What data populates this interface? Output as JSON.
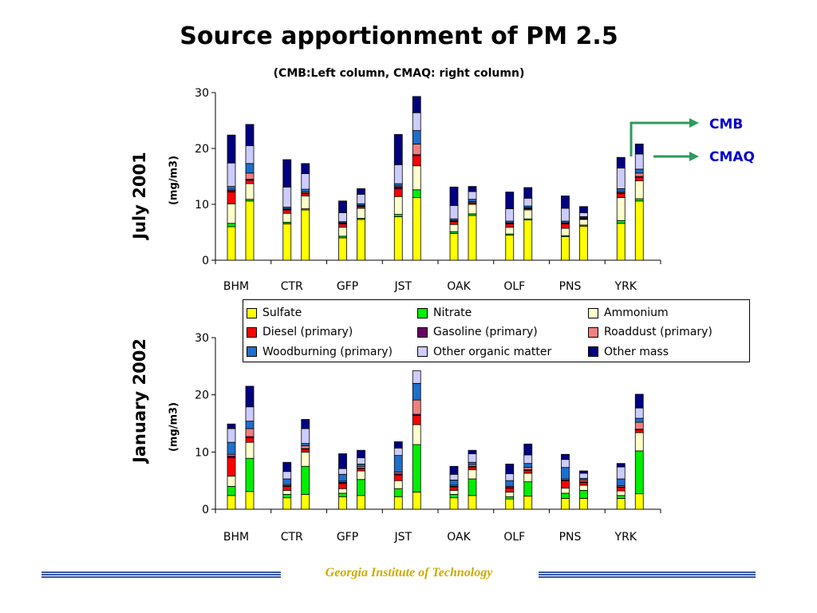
{
  "title": "Source apportionment of PM 2.5",
  "subtitle": "(CMB:Left column, CMAQ: right column)",
  "annotations": {
    "cmb": "CMB",
    "cmaq": "CMAQ"
  },
  "footer": "Georgia Institute of Technology",
  "colors": {
    "arrow": "#2e9a5c",
    "annotation_text": "#0000cc",
    "footer_text": "#ccaa00",
    "footer_lines": "#3355aa"
  },
  "chart_data": [
    {
      "type": "bar",
      "stacked": true,
      "period_label": "July 2001",
      "ylabel": "(mg/m3)",
      "ylim": [
        0,
        30
      ],
      "yticks": [
        0,
        10,
        20,
        30
      ],
      "categories": [
        "BHM",
        "CTR",
        "GFP",
        "JST",
        "OAK",
        "OLF",
        "PNS",
        "YRK"
      ],
      "columns_per_category": [
        "CMB",
        "CMAQ"
      ],
      "series": [
        {
          "name": "Sulfate",
          "color": "#ffff00",
          "cmb": [
            6.0,
            6.5,
            4.0,
            7.8,
            4.8,
            4.5,
            4.2,
            6.6
          ],
          "cmaq": [
            10.6,
            9.0,
            7.3,
            11.2,
            8.0,
            7.2,
            6.1,
            10.6
          ]
        },
        {
          "name": "Nitrate",
          "color": "#00ee00",
          "cmb": [
            0.6,
            0.3,
            0.3,
            0.4,
            0.3,
            0.2,
            0.2,
            0.5
          ],
          "cmaq": [
            0.3,
            0.2,
            0.2,
            1.4,
            0.3,
            0.2,
            0.2,
            0.4
          ]
        },
        {
          "name": "Ammonium",
          "color": "#ffffcc",
          "cmb": [
            3.5,
            1.6,
            1.6,
            3.2,
            1.3,
            1.2,
            1.3,
            4.1
          ],
          "cmaq": [
            2.8,
            2.3,
            1.8,
            4.3,
            1.7,
            1.6,
            1.0,
            3.2
          ]
        },
        {
          "name": "Diesel (primary)",
          "color": "#ff0000",
          "cmb": [
            2.1,
            0.6,
            0.6,
            1.4,
            0.5,
            0.6,
            0.8,
            0.7
          ],
          "cmaq": [
            0.6,
            0.4,
            0.3,
            1.8,
            0.2,
            0.2,
            0.1,
            0.6
          ]
        },
        {
          "name": "Gasoline (primary)",
          "color": "#660066",
          "cmb": [
            0.3,
            0.1,
            0.1,
            0.3,
            0.1,
            0.1,
            0.1,
            0.2
          ],
          "cmaq": [
            0.2,
            0.1,
            0.1,
            0.2,
            0.1,
            0.1,
            0.1,
            0.2
          ]
        },
        {
          "name": "Roaddust (primary)",
          "color": "#f08080",
          "cmb": [
            0.2,
            0.1,
            0.1,
            0.2,
            0.1,
            0.1,
            0.1,
            0.2
          ],
          "cmaq": [
            1.1,
            0.2,
            0.1,
            1.9,
            0.2,
            0.1,
            0.1,
            0.6
          ]
        },
        {
          "name": "Woodburning (primary)",
          "color": "#1e6fcc",
          "cmb": [
            0.5,
            0.3,
            0.2,
            0.4,
            0.3,
            0.3,
            0.3,
            0.5
          ],
          "cmaq": [
            1.7,
            0.5,
            0.3,
            2.4,
            0.4,
            0.3,
            0.2,
            0.7
          ]
        },
        {
          "name": "Other organic matter",
          "color": "#ccccff",
          "cmb": [
            4.2,
            3.6,
            1.6,
            3.4,
            2.4,
            2.2,
            2.3,
            3.7
          ],
          "cmaq": [
            3.2,
            2.8,
            1.7,
            3.2,
            1.4,
            1.4,
            0.7,
            2.7
          ]
        },
        {
          "name": "Other mass",
          "color": "#000080",
          "cmb": [
            5.0,
            4.9,
            2.1,
            5.4,
            3.3,
            3.0,
            2.2,
            1.9
          ],
          "cmaq": [
            3.8,
            1.8,
            1.0,
            2.9,
            0.9,
            1.9,
            1.1,
            1.8
          ]
        }
      ]
    },
    {
      "type": "bar",
      "stacked": true,
      "period_label": "January 2002",
      "ylabel": "(mg/m3)",
      "ylim": [
        0,
        30
      ],
      "yticks": [
        0,
        10,
        20,
        30
      ],
      "categories": [
        "BHM",
        "CTR",
        "GFP",
        "JST",
        "OAK",
        "OLF",
        "PNS",
        "YRK"
      ],
      "columns_per_category": [
        "CMB",
        "CMAQ"
      ],
      "series": [
        {
          "name": "Sulfate",
          "color": "#ffff00",
          "cmb": [
            2.4,
            2.0,
            2.2,
            2.2,
            2.0,
            1.8,
            1.9,
            1.9
          ],
          "cmaq": [
            3.1,
            2.6,
            2.4,
            3.0,
            2.4,
            2.3,
            1.9,
            2.7
          ]
        },
        {
          "name": "Nitrate",
          "color": "#00ee00",
          "cmb": [
            1.6,
            0.6,
            0.6,
            1.4,
            0.6,
            0.4,
            0.9,
            0.5
          ],
          "cmaq": [
            5.8,
            4.9,
            2.8,
            8.3,
            2.9,
            2.5,
            1.4,
            7.5
          ]
        },
        {
          "name": "Ammonium",
          "color": "#ffffcc",
          "cmb": [
            1.8,
            0.7,
            0.8,
            1.4,
            0.7,
            0.8,
            0.9,
            0.8
          ],
          "cmaq": [
            2.8,
            2.5,
            1.5,
            3.5,
            1.6,
            1.5,
            0.9,
            3.2
          ]
        },
        {
          "name": "Diesel (primary)",
          "color": "#ff0000",
          "cmb": [
            3.2,
            0.7,
            0.9,
            1.0,
            0.6,
            0.7,
            1.3,
            0.6
          ],
          "cmaq": [
            0.8,
            0.5,
            0.4,
            1.6,
            0.5,
            0.5,
            0.5,
            0.5
          ]
        },
        {
          "name": "Gasoline (primary)",
          "color": "#660066",
          "cmb": [
            0.3,
            0.1,
            0.2,
            0.2,
            0.1,
            0.1,
            0.1,
            0.1
          ],
          "cmaq": [
            0.2,
            0.1,
            0.1,
            0.2,
            0.1,
            0.1,
            0.1,
            0.1
          ]
        },
        {
          "name": "Roaddust (primary)",
          "color": "#f08080",
          "cmb": [
            0.3,
            0.2,
            0.2,
            0.3,
            0.2,
            0.2,
            0.2,
            0.2
          ],
          "cmaq": [
            1.4,
            0.5,
            0.3,
            2.5,
            0.3,
            0.4,
            0.3,
            1.2
          ]
        },
        {
          "name": "Woodburning (primary)",
          "color": "#1e6fcc",
          "cmb": [
            2.1,
            1.0,
            1.2,
            2.9,
            0.9,
            1.0,
            2.0,
            1.2
          ],
          "cmaq": [
            1.3,
            0.4,
            0.4,
            2.9,
            0.4,
            0.7,
            0.3,
            0.7
          ]
        },
        {
          "name": "Other organic matter",
          "color": "#ccccff",
          "cmb": [
            2.4,
            1.3,
            1.0,
            1.3,
            1.0,
            1.2,
            1.4,
            2.1
          ],
          "cmaq": [
            2.5,
            2.6,
            1.1,
            2.2,
            1.5,
            1.5,
            0.9,
            1.8
          ]
        },
        {
          "name": "Other mass",
          "color": "#000080",
          "cmb": [
            0.8,
            1.6,
            2.6,
            1.1,
            1.4,
            1.7,
            0.9,
            0.6
          ],
          "cmaq": [
            3.6,
            1.6,
            1.3,
            0,
            0.6,
            1.9,
            0.4,
            2.4
          ]
        }
      ]
    }
  ],
  "legend": [
    {
      "label": "Sulfate",
      "color": "#ffff00"
    },
    {
      "label": "Nitrate",
      "color": "#00ee00"
    },
    {
      "label": "Ammonium",
      "color": "#ffffcc"
    },
    {
      "label": "Diesel (primary)",
      "color": "#ff0000"
    },
    {
      "label": "Gasoline (primary)",
      "color": "#660066"
    },
    {
      "label": "Roaddust (primary)",
      "color": "#f08080"
    },
    {
      "label": "Woodburning (primary)",
      "color": "#1e6fcc"
    },
    {
      "label": "Other organic matter",
      "color": "#ccccff"
    },
    {
      "label": "Other mass",
      "color": "#000080"
    }
  ]
}
